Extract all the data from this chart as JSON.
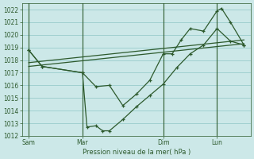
{
  "background_color": "#cce8e8",
  "grid_color": "#99cccc",
  "line_color": "#2d5a2d",
  "marker_color": "#2d5a2d",
  "xlabel": "Pression niveau de la mer( hPa )",
  "ylim": [
    1012,
    1022.5
  ],
  "yticks": [
    1012,
    1013,
    1014,
    1015,
    1016,
    1017,
    1018,
    1019,
    1020,
    1021,
    1022
  ],
  "xtick_labels": [
    "Sam",
    "Mar",
    "Dim",
    "Lun"
  ],
  "xtick_positions": [
    0,
    24,
    60,
    84
  ],
  "xlim": [
    -3,
    99
  ],
  "vlines_x": [
    0,
    24,
    60,
    84
  ],
  "series1_x": [
    0,
    6,
    24,
    26,
    30,
    33,
    36,
    42,
    48,
    54,
    60,
    66,
    72,
    78,
    84,
    90,
    96
  ],
  "series1_y": [
    1018.8,
    1017.5,
    1017.0,
    1012.7,
    1012.8,
    1012.4,
    1012.4,
    1013.3,
    1014.3,
    1015.2,
    1016.1,
    1017.4,
    1018.5,
    1019.2,
    1020.5,
    1019.5,
    1019.2
  ],
  "series2_x": [
    0,
    6,
    24,
    30,
    36,
    42,
    48,
    54,
    60,
    64,
    68,
    72,
    78,
    84,
    86,
    90,
    96
  ],
  "series2_y": [
    1018.8,
    1017.5,
    1017.0,
    1015.9,
    1016.0,
    1014.4,
    1015.3,
    1016.4,
    1018.5,
    1018.5,
    1019.6,
    1020.5,
    1020.3,
    1021.9,
    1022.1,
    1021.0,
    1019.2
  ],
  "trend1_x": [
    0,
    96
  ],
  "trend1_y": [
    1017.5,
    1019.3
  ],
  "trend2_x": [
    0,
    96
  ],
  "trend2_y": [
    1017.8,
    1019.6
  ]
}
